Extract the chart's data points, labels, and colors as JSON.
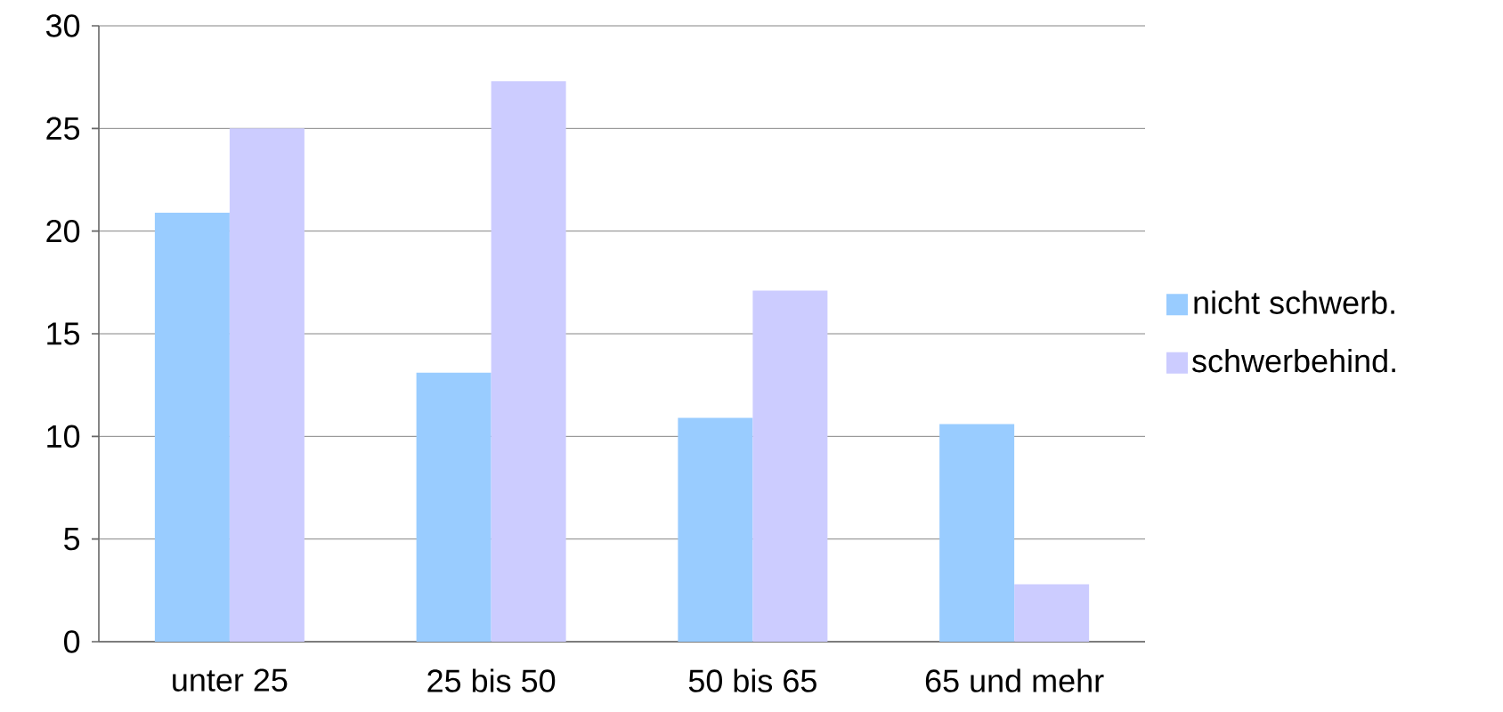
{
  "chart_data": {
    "type": "bar",
    "categories": [
      "unter 25",
      "25 bis 50",
      "50 bis 65",
      "65 und mehr"
    ],
    "series": [
      {
        "name": "nicht schwerb.",
        "color": "#99ccff",
        "values": [
          20.9,
          13.1,
          10.9,
          10.6
        ]
      },
      {
        "name": "schwerbehind.",
        "color": "#ccccff",
        "values": [
          25.0,
          27.3,
          17.1,
          2.8
        ]
      }
    ],
    "ylim": [
      0,
      30
    ],
    "yticks": [
      0,
      5,
      10,
      15,
      20,
      25,
      30
    ],
    "grid": "y",
    "legend": "right"
  }
}
